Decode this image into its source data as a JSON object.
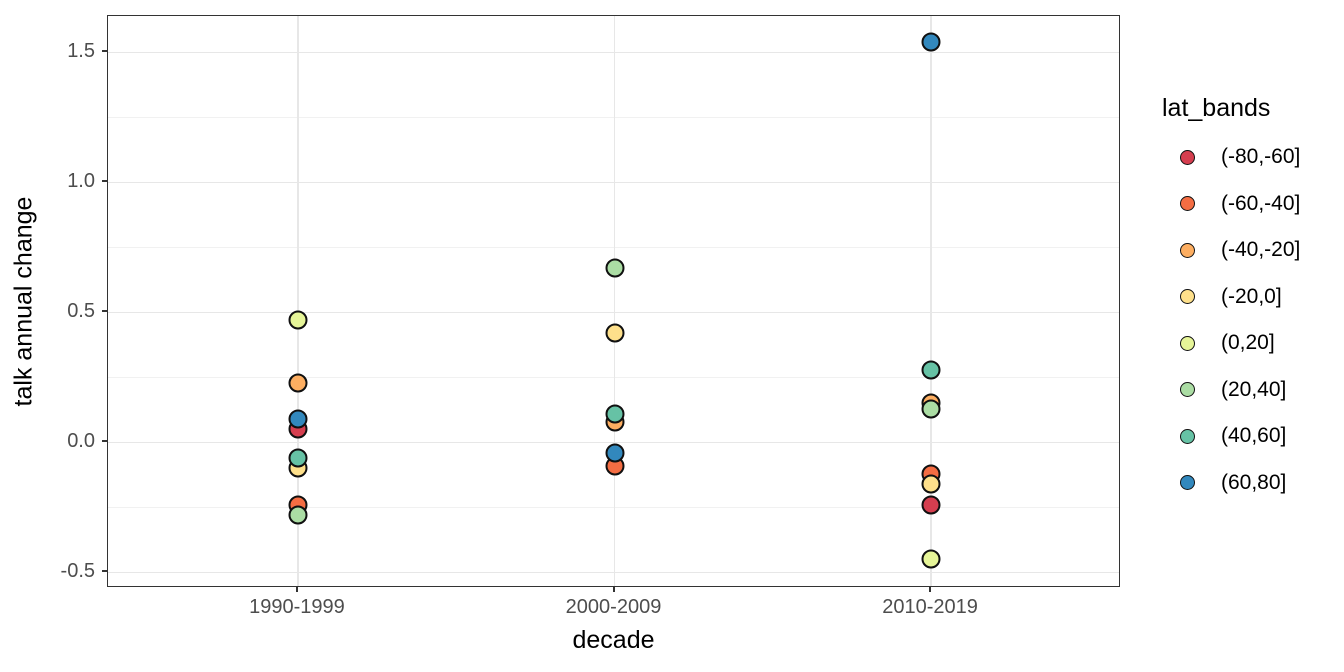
{
  "chart_data": {
    "type": "scatter",
    "title": "",
    "xlabel": "decade",
    "ylabel": "talk annual change",
    "categories": [
      "1990-1999",
      "2000-2009",
      "2010-2019"
    ],
    "ylim": [
      -0.56,
      1.64
    ],
    "y_major_ticks": [
      -0.5,
      0.0,
      0.5,
      1.0,
      1.5
    ],
    "y_tick_labels": [
      "-0.5",
      "0.0",
      "0.5",
      "1.0",
      "1.5"
    ],
    "y_minor_ticks": [
      -0.25,
      0.25,
      0.75,
      1.25
    ],
    "grid": true,
    "legend": {
      "title": "lat_bands",
      "position": "right"
    },
    "series": [
      {
        "name": "(-80,-60]",
        "color": "#d53e4f",
        "values": [
          0.05,
          null,
          -0.24
        ]
      },
      {
        "name": "(-60,-40]",
        "color": "#f46d43",
        "values": [
          -0.24,
          -0.09,
          -0.12
        ]
      },
      {
        "name": "(-40,-20]",
        "color": "#fdae61",
        "values": [
          0.23,
          0.08,
          0.15
        ]
      },
      {
        "name": "(-20,0]",
        "color": "#fee08b",
        "values": [
          -0.1,
          0.42,
          -0.16
        ]
      },
      {
        "name": "(0,20]",
        "color": "#e6f598",
        "values": [
          0.47,
          null,
          -0.45
        ]
      },
      {
        "name": "(20,40]",
        "color": "#abdda4",
        "values": [
          -0.28,
          0.67,
          0.13
        ]
      },
      {
        "name": "(40,60]",
        "color": "#66c2a5",
        "values": [
          -0.06,
          0.11,
          0.28
        ]
      },
      {
        "name": "(60,80]",
        "color": "#3288bd",
        "values": [
          0.09,
          -0.04,
          1.54
        ]
      }
    ]
  }
}
